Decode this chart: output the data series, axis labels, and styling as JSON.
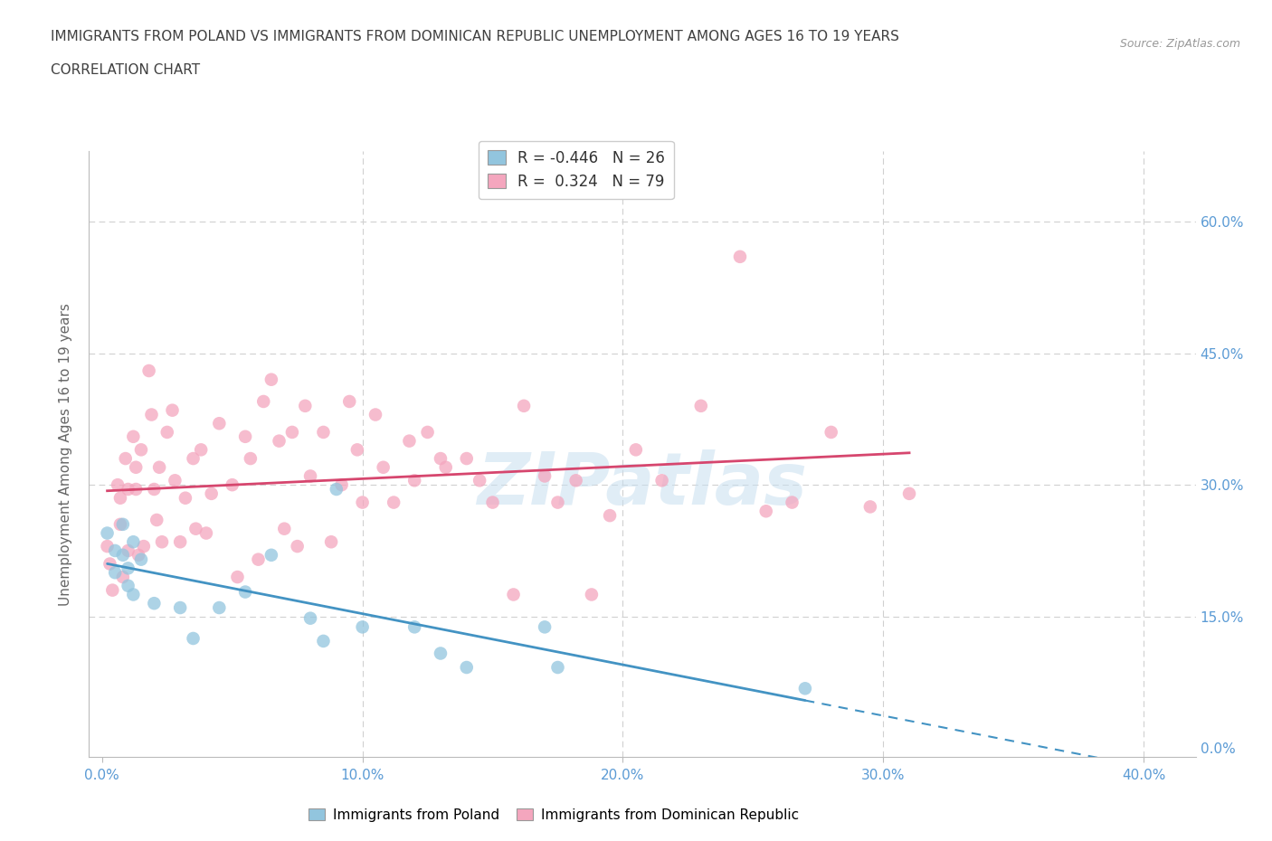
{
  "title_line1": "IMMIGRANTS FROM POLAND VS IMMIGRANTS FROM DOMINICAN REPUBLIC UNEMPLOYMENT AMONG AGES 16 TO 19 YEARS",
  "title_line2": "CORRELATION CHART",
  "source": "Source: ZipAtlas.com",
  "xlabel_ticks": [
    "0.0%",
    "10.0%",
    "20.0%",
    "30.0%",
    "40.0%"
  ],
  "xlabel_tick_vals": [
    0.0,
    0.1,
    0.2,
    0.3,
    0.4
  ],
  "ylabel": "Unemployment Among Ages 16 to 19 years",
  "ylabel_ticks": [
    "0.0%",
    "15.0%",
    "30.0%",
    "45.0%",
    "60.0%"
  ],
  "ylabel_tick_vals": [
    0.0,
    0.15,
    0.3,
    0.45,
    0.6
  ],
  "xlim": [
    -0.005,
    0.42
  ],
  "ylim": [
    -0.01,
    0.68
  ],
  "poland_R": -0.446,
  "poland_N": 26,
  "dr_R": 0.324,
  "dr_N": 79,
  "poland_color": "#92c5de",
  "dr_color": "#f4a6be",
  "poland_line_color": "#4393c3",
  "dr_line_color": "#d6466e",
  "poland_x": [
    0.002,
    0.005,
    0.005,
    0.008,
    0.008,
    0.01,
    0.01,
    0.012,
    0.012,
    0.015,
    0.02,
    0.03,
    0.035,
    0.045,
    0.055,
    0.065,
    0.08,
    0.085,
    0.09,
    0.1,
    0.12,
    0.13,
    0.14,
    0.17,
    0.175,
    0.27
  ],
  "poland_y": [
    0.245,
    0.225,
    0.2,
    0.255,
    0.22,
    0.205,
    0.185,
    0.235,
    0.175,
    0.215,
    0.165,
    0.16,
    0.125,
    0.16,
    0.178,
    0.22,
    0.148,
    0.122,
    0.295,
    0.138,
    0.138,
    0.108,
    0.092,
    0.138,
    0.092,
    0.068
  ],
  "dr_x": [
    0.002,
    0.003,
    0.004,
    0.006,
    0.007,
    0.007,
    0.008,
    0.009,
    0.01,
    0.01,
    0.012,
    0.013,
    0.013,
    0.014,
    0.015,
    0.016,
    0.018,
    0.019,
    0.02,
    0.021,
    0.022,
    0.023,
    0.025,
    0.027,
    0.028,
    0.03,
    0.032,
    0.035,
    0.036,
    0.038,
    0.04,
    0.042,
    0.045,
    0.05,
    0.052,
    0.055,
    0.057,
    0.06,
    0.062,
    0.065,
    0.068,
    0.07,
    0.073,
    0.075,
    0.078,
    0.08,
    0.085,
    0.088,
    0.092,
    0.095,
    0.098,
    0.1,
    0.105,
    0.108,
    0.112,
    0.118,
    0.12,
    0.125,
    0.13,
    0.132,
    0.14,
    0.145,
    0.15,
    0.158,
    0.162,
    0.17,
    0.175,
    0.182,
    0.188,
    0.195,
    0.205,
    0.215,
    0.23,
    0.245,
    0.255,
    0.265,
    0.28,
    0.295,
    0.31
  ],
  "dr_y": [
    0.23,
    0.21,
    0.18,
    0.3,
    0.285,
    0.255,
    0.195,
    0.33,
    0.295,
    0.225,
    0.355,
    0.32,
    0.295,
    0.22,
    0.34,
    0.23,
    0.43,
    0.38,
    0.295,
    0.26,
    0.32,
    0.235,
    0.36,
    0.385,
    0.305,
    0.235,
    0.285,
    0.33,
    0.25,
    0.34,
    0.245,
    0.29,
    0.37,
    0.3,
    0.195,
    0.355,
    0.33,
    0.215,
    0.395,
    0.42,
    0.35,
    0.25,
    0.36,
    0.23,
    0.39,
    0.31,
    0.36,
    0.235,
    0.3,
    0.395,
    0.34,
    0.28,
    0.38,
    0.32,
    0.28,
    0.35,
    0.305,
    0.36,
    0.33,
    0.32,
    0.33,
    0.305,
    0.28,
    0.175,
    0.39,
    0.31,
    0.28,
    0.305,
    0.175,
    0.265,
    0.34,
    0.305,
    0.39,
    0.56,
    0.27,
    0.28,
    0.36,
    0.275,
    0.29
  ],
  "watermark": "ZIPatlas",
  "background_color": "#ffffff",
  "grid_color": "#d0d0d0",
  "right_label_color": "#5b9bd5",
  "title_color": "#404040"
}
